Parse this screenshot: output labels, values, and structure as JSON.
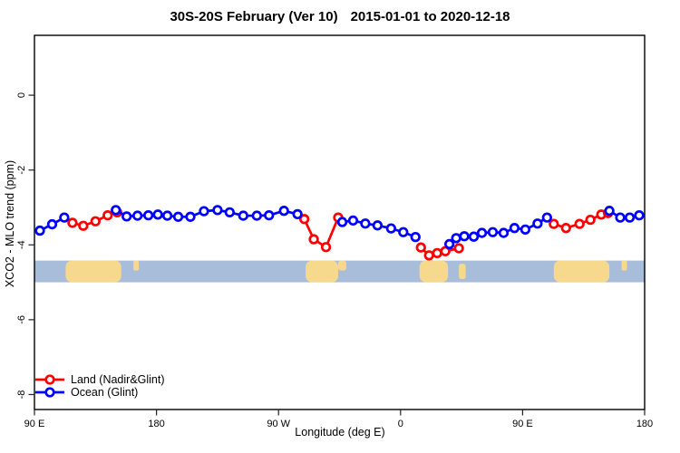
{
  "title": {
    "left": "30S-20S February (Ver 10)",
    "right": "2015-01-01 to 2020-12-18"
  },
  "legend": {
    "items": [
      {
        "label": "Land (Nadir&Glint)",
        "color": "#ff0000"
      },
      {
        "label": "Ocean (Glint)",
        "color": "#0000ff"
      }
    ]
  },
  "chart_data": {
    "type": "line",
    "title": "30S-20S February (Ver 10)  2015-01-01 to 2020-12-18",
    "xlabel": "Longitude (deg E)",
    "ylabel": "XCO2 - MLO trend (ppm)",
    "xlim": [
      90,
      540
    ],
    "ylim": [
      -8.4,
      1.6
    ],
    "grid": false,
    "frame": true,
    "x_axis_note": "longitude wraps eastward: 90E to 180 to 90W to 0 to 90E to 180",
    "x_ticks": {
      "values": [
        90,
        180,
        270,
        360,
        450,
        540
      ],
      "labels": [
        "90 E",
        "180",
        "90 W",
        "0",
        "90 E",
        "180"
      ]
    },
    "y_ticks": {
      "values": [
        0,
        -2,
        -4,
        -6,
        -8
      ],
      "labels": [
        "0",
        "-2",
        "-4",
        "-6",
        "-8"
      ]
    },
    "marker": "open-circle",
    "series": [
      {
        "name": "Land (Nadir&Glint)",
        "color": "#ff0000",
        "segments": [
          [
            [
              118,
              -3.41
            ],
            [
              126,
              -3.49
            ],
            [
              135,
              -3.37
            ],
            [
              144,
              -3.21
            ],
            [
              151,
              -3.13
            ]
          ],
          [
            [
              289,
              -3.31
            ],
            [
              296,
              -3.85
            ],
            [
              305,
              -4.06
            ],
            [
              314,
              -3.27
            ]
          ],
          [
            [
              375,
              -4.07
            ],
            [
              381,
              -4.28
            ],
            [
              387,
              -4.22
            ],
            [
              393,
              -4.17
            ],
            [
              403,
              -4.09
            ]
          ],
          [
            [
              473,
              -3.44
            ],
            [
              482,
              -3.55
            ],
            [
              492,
              -3.44
            ],
            [
              500,
              -3.33
            ],
            [
              508,
              -3.19
            ],
            [
              513,
              -3.15
            ]
          ]
        ]
      },
      {
        "name": "Ocean (Glint)",
        "color": "#0000ff",
        "segments": [
          [
            [
              94,
              -3.62
            ],
            [
              103,
              -3.45
            ],
            [
              112,
              -3.27
            ]
          ],
          [
            [
              150,
              -3.07
            ],
            [
              158,
              -3.24
            ],
            [
              166,
              -3.22
            ],
            [
              174,
              -3.21
            ],
            [
              181,
              -3.19
            ],
            [
              188,
              -3.22
            ],
            [
              196,
              -3.25
            ],
            [
              205,
              -3.25
            ],
            [
              215,
              -3.1
            ],
            [
              225,
              -3.07
            ],
            [
              234,
              -3.13
            ],
            [
              244,
              -3.22
            ],
            [
              254,
              -3.22
            ],
            [
              263,
              -3.21
            ],
            [
              274,
              -3.09
            ],
            [
              284,
              -3.18
            ]
          ],
          [
            [
              317,
              -3.39
            ],
            [
              325,
              -3.35
            ],
            [
              334,
              -3.43
            ],
            [
              343,
              -3.48
            ],
            [
              353,
              -3.56
            ],
            [
              362,
              -3.66
            ],
            [
              371,
              -3.79
            ]
          ],
          [
            [
              396,
              -3.98
            ],
            [
              401,
              -3.82
            ],
            [
              407,
              -3.77
            ],
            [
              414,
              -3.78
            ],
            [
              420,
              -3.68
            ],
            [
              428,
              -3.66
            ],
            [
              436,
              -3.68
            ],
            [
              444,
              -3.55
            ],
            [
              452,
              -3.59
            ],
            [
              461,
              -3.43
            ],
            [
              468,
              -3.27
            ]
          ],
          [
            [
              514,
              -3.09
            ],
            [
              522,
              -3.27
            ],
            [
              529,
              -3.27
            ],
            [
              536,
              -3.21
            ]
          ]
        ]
      }
    ],
    "map_band": {
      "y_top": -4.42,
      "y_bottom": -5.0,
      "ocean_color": "#a7bdd9",
      "land_color": "#f7d98d",
      "land_regions": [
        {
          "name": "australia",
          "from": 113,
          "to": 154,
          "extent": "full"
        },
        {
          "name": "new-caledonia",
          "from": 163,
          "to": 167,
          "extent": "top"
        },
        {
          "name": "south-america",
          "from": 290,
          "to": 314,
          "extent": "full"
        },
        {
          "name": "brazil-east",
          "from": 314,
          "to": 320,
          "extent": "top"
        },
        {
          "name": "africa",
          "from": 374,
          "to": 395,
          "extent": "full"
        },
        {
          "name": "madagascar",
          "from": 403,
          "to": 408,
          "extent": "mid"
        },
        {
          "name": "australia-wrap",
          "from": 473,
          "to": 514,
          "extent": "full"
        },
        {
          "name": "new-caledonia-wrap",
          "from": 523,
          "to": 527,
          "extent": "top"
        }
      ]
    }
  }
}
